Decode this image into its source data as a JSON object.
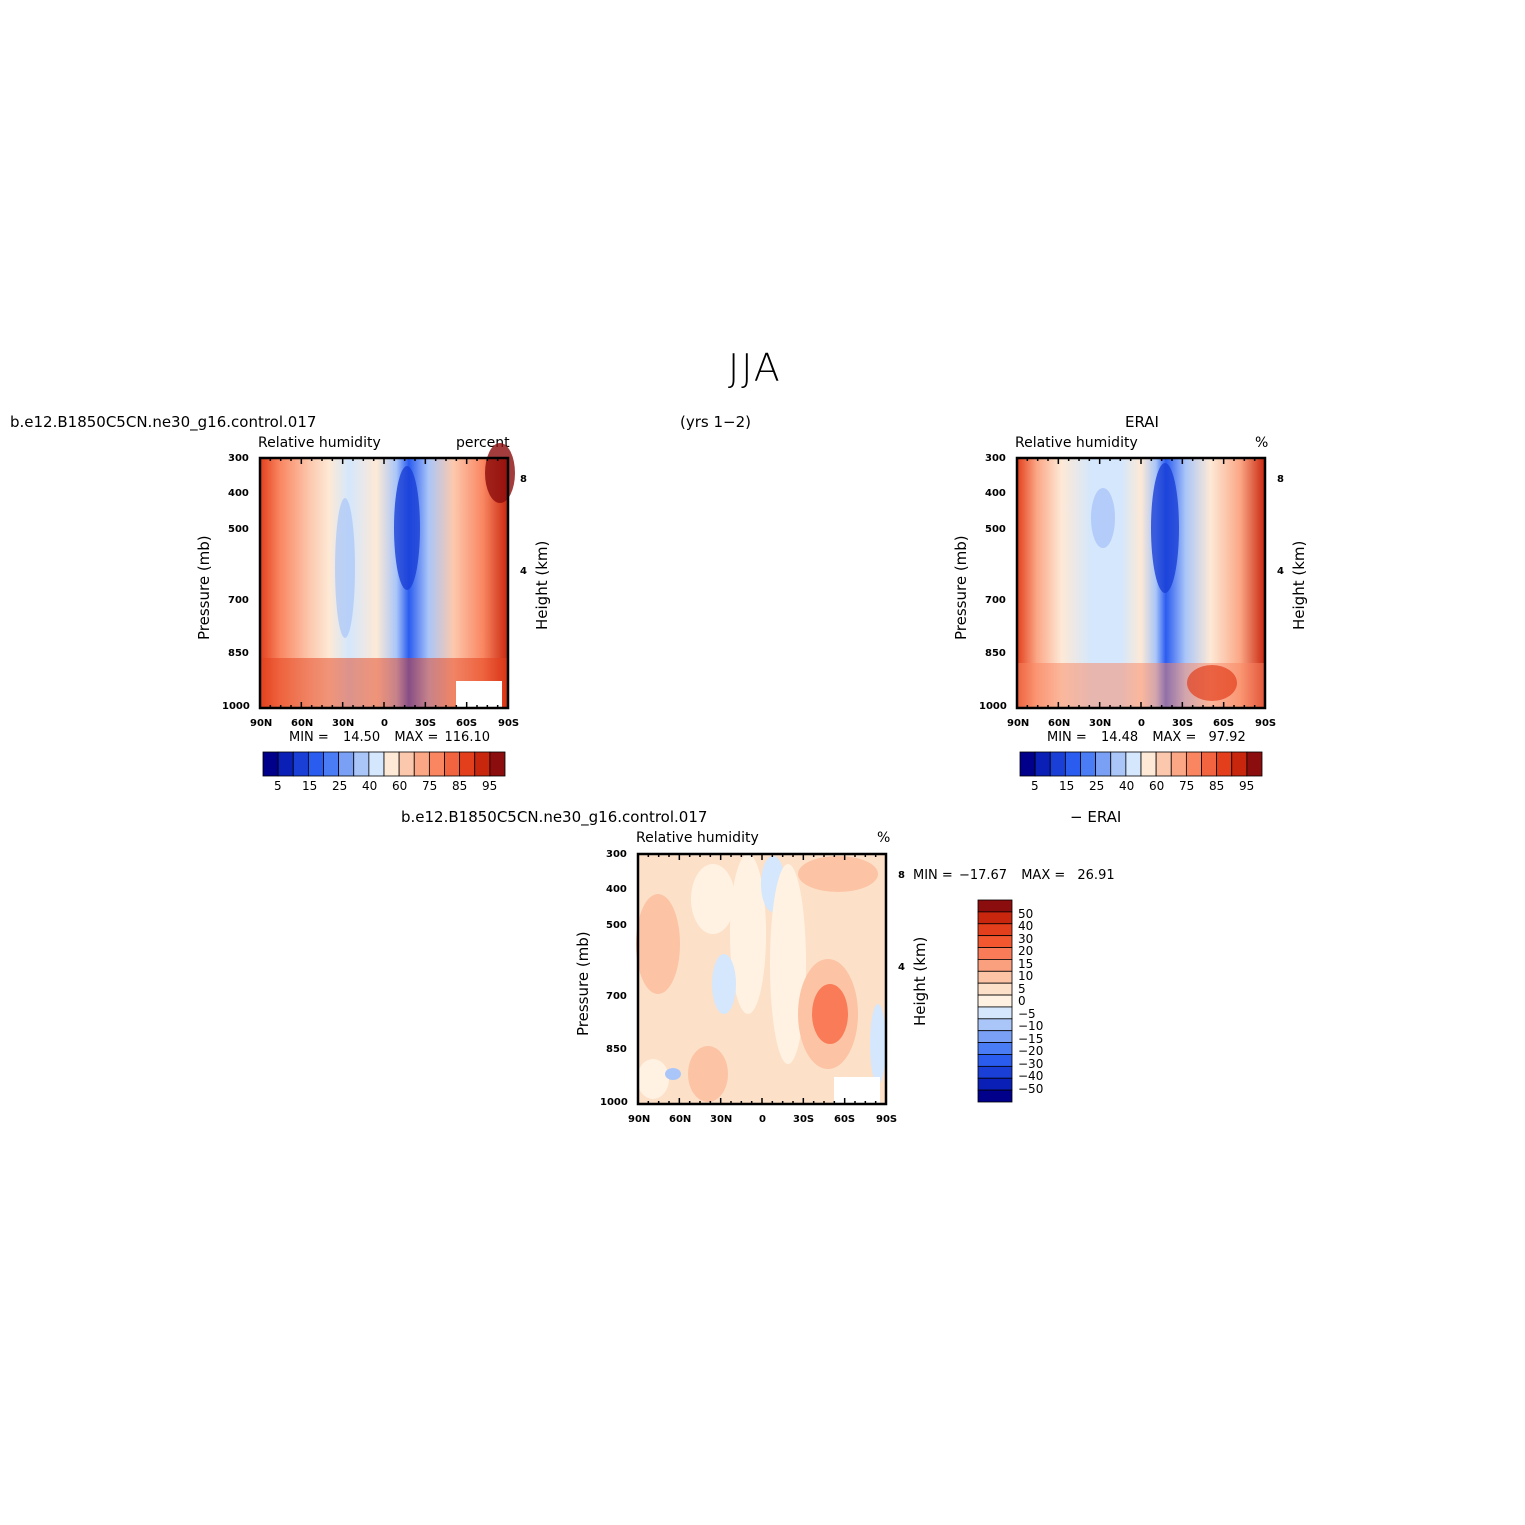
{
  "page": {
    "title": "JJA",
    "period": "(yrs 1−2)",
    "case_name": "b.e12.B1850C5CN.ne30_g16.control.017",
    "ref_name": "ERAI",
    "diff_name": "b.e12.B1850C5CN.ne30_g16.control.017",
    "diff_ref": "− ERAI"
  },
  "colors": {
    "abs_scale": [
      "#00008a",
      "#0a1fb5",
      "#1a3fd6",
      "#2a5cf0",
      "#4a7df5",
      "#7aa0f5",
      "#aac6f8",
      "#d4e7fc",
      "#fde9d6",
      "#fcc8ad",
      "#fba786",
      "#f98661",
      "#f2633f",
      "#e33f1c",
      "#c9260e",
      "#8c0d0d"
    ],
    "diff_scale": [
      "#00008a",
      "#0a1fb5",
      "#1a3fd6",
      "#2a5cf0",
      "#4a7df5",
      "#7aa0f5",
      "#aac6f8",
      "#d4e7fc",
      "#fff2e2",
      "#fde0c8",
      "#fcc3a5",
      "#fba07f",
      "#f97b57",
      "#f2572f",
      "#e33f1c",
      "#c9260e",
      "#8c0d0d"
    ]
  },
  "chart_data": [
    {
      "type": "heatmap",
      "panel": "model",
      "left_title": "Relative humidity",
      "right_title": "percent",
      "xlabel": "",
      "ylabel": "Pressure (mb)",
      "y2label": "Height (km)",
      "x_ticks": [
        "90N",
        "60N",
        "30N",
        "0",
        "30S",
        "60S",
        "90S"
      ],
      "y_ticks": [
        "300",
        "400",
        "500",
        "700",
        "850",
        "1000"
      ],
      "y2_ticks": [
        "8",
        "4"
      ],
      "ylim": [
        1000,
        300
      ],
      "stats": {
        "min_label": "MIN =",
        "min": "14.50",
        "max_label": "MAX =",
        "max": "116.10"
      },
      "colorbar_labels": [
        "5",
        "15",
        "25",
        "40",
        "60",
        "75",
        "85",
        "95"
      ]
    },
    {
      "type": "heatmap",
      "panel": "reference",
      "left_title": "Relative humidity",
      "right_title": "%",
      "xlabel": "",
      "ylabel": "Pressure (mb)",
      "y2label": "Height (km)",
      "x_ticks": [
        "90N",
        "60N",
        "30N",
        "0",
        "30S",
        "60S",
        "90S"
      ],
      "y_ticks": [
        "300",
        "400",
        "500",
        "700",
        "850",
        "1000"
      ],
      "y2_ticks": [
        "8",
        "4"
      ],
      "ylim": [
        1000,
        300
      ],
      "stats": {
        "min_label": "MIN =",
        "min": "14.48",
        "max_label": "MAX =",
        "max": "97.92"
      },
      "colorbar_labels": [
        "5",
        "15",
        "25",
        "40",
        "60",
        "75",
        "85",
        "95"
      ]
    },
    {
      "type": "heatmap",
      "panel": "difference",
      "left_title": "Relative humidity",
      "right_title": "%",
      "xlabel": "",
      "ylabel": "Pressure (mb)",
      "y2label": "Height (km)",
      "x_ticks": [
        "90N",
        "60N",
        "30N",
        "0",
        "30S",
        "60S",
        "90S"
      ],
      "y_ticks": [
        "300",
        "400",
        "500",
        "700",
        "850",
        "1000"
      ],
      "y2_ticks": [
        "8",
        "4"
      ],
      "ylim": [
        1000,
        300
      ],
      "stats": {
        "min_label": "MIN =",
        "min": "−17.67",
        "max_label": "MAX =",
        "max": "26.91"
      },
      "colorbar_labels": [
        "50",
        "40",
        "30",
        "20",
        "15",
        "10",
        "5",
        "0",
        "−5",
        "−10",
        "−15",
        "−20",
        "−30",
        "−40",
        "−50"
      ]
    }
  ]
}
